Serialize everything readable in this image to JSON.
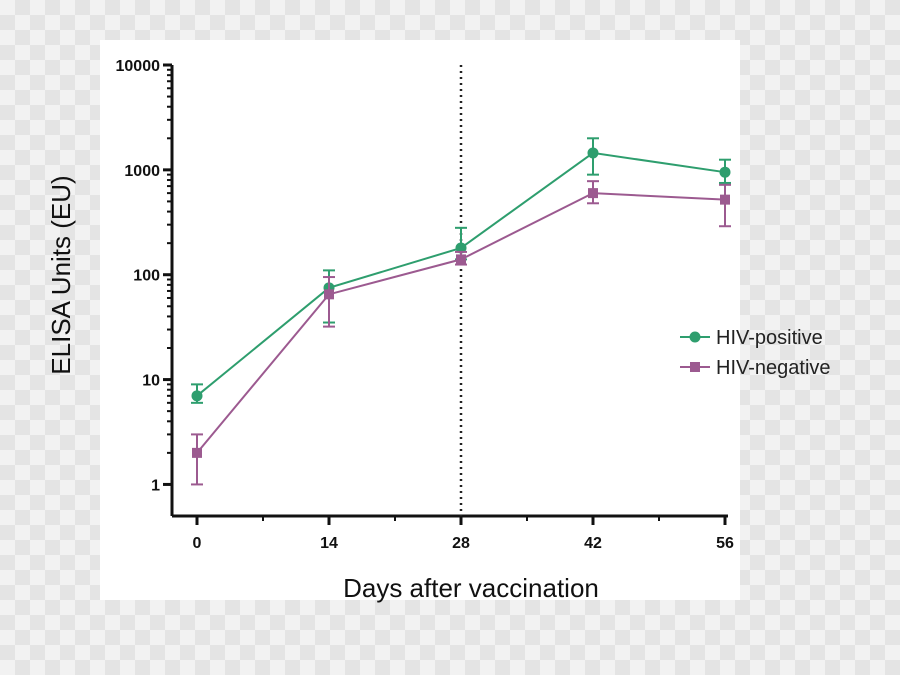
{
  "chart_data": {
    "type": "line",
    "title": "",
    "xlabel": "Days after vaccination",
    "ylabel": "ELISA Units (EU)",
    "y_scale": "log",
    "ylim": [
      0.5,
      10000
    ],
    "xlim": [
      0,
      56
    ],
    "x": [
      0,
      14,
      28,
      42,
      56
    ],
    "x_ticks": [
      "0",
      "14",
      "28",
      "42",
      "56"
    ],
    "y_ticks": [
      {
        "value": 1,
        "label": "1"
      },
      {
        "value": 10,
        "label": "10"
      },
      {
        "value": 100,
        "label": "100"
      },
      {
        "value": 1000,
        "label": "1000"
      },
      {
        "value": 10000,
        "label": "10000"
      }
    ],
    "reference_line": {
      "x": 28,
      "style": "dotted"
    },
    "legend_position": "right",
    "grid": false,
    "series": [
      {
        "name": "HIV-positive",
        "color": "#2e9e6e",
        "marker": "circle",
        "values": [
          7,
          75,
          180,
          1450,
          950
        ],
        "error_low": [
          6,
          35,
          140,
          900,
          750
        ],
        "error_high": [
          9,
          110,
          280,
          2000,
          1250
        ]
      },
      {
        "name": "HIV-negative",
        "color": "#9c5a90",
        "marker": "square",
        "values": [
          2,
          65,
          140,
          600,
          520
        ],
        "error_low": [
          1,
          32,
          125,
          480,
          290
        ],
        "error_high": [
          3,
          95,
          165,
          780,
          720
        ]
      }
    ]
  }
}
